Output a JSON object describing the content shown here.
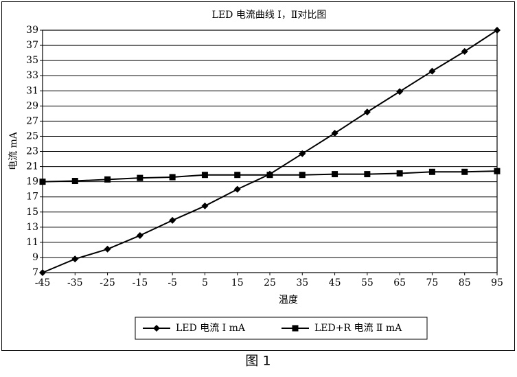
{
  "chart_data": {
    "type": "line",
    "title": "LED 电流曲线 Ⅰ，Ⅱ对比图",
    "x_label": "温度",
    "y_label": "电流 mA",
    "x": [
      -45,
      -35,
      -25,
      -15,
      -5,
      5,
      15,
      25,
      35,
      45,
      55,
      65,
      75,
      85,
      95
    ],
    "series": [
      {
        "name": "LED 电流 Ⅰ mA",
        "color": "#000000",
        "marker": "diamond",
        "values": [
          7,
          8.8,
          10.1,
          11.9,
          13.9,
          15.8,
          18,
          20,
          22.7,
          25.4,
          28.2,
          30.9,
          33.6,
          36.2,
          39
        ]
      },
      {
        "name": "LED+R 电流 Ⅱ mA",
        "color": "#000000",
        "marker": "square",
        "values": [
          19.0,
          19.1,
          19.3,
          19.5,
          19.6,
          19.9,
          19.9,
          19.9,
          19.9,
          20.0,
          20.0,
          20.1,
          20.3,
          20.3,
          20.4
        ]
      }
    ],
    "xlim": [
      -45,
      95
    ],
    "xticks": [
      -45,
      -35,
      -25,
      -15,
      -5,
      5,
      15,
      25,
      35,
      45,
      55,
      65,
      75,
      85,
      95
    ],
    "ylim": [
      7,
      39
    ],
    "yticks": [
      7,
      9,
      11,
      13,
      15,
      17,
      19,
      21,
      23,
      25,
      27,
      29,
      31,
      33,
      35,
      37,
      39
    ],
    "grid": true,
    "legend": "bottom"
  },
  "caption": "图 1"
}
